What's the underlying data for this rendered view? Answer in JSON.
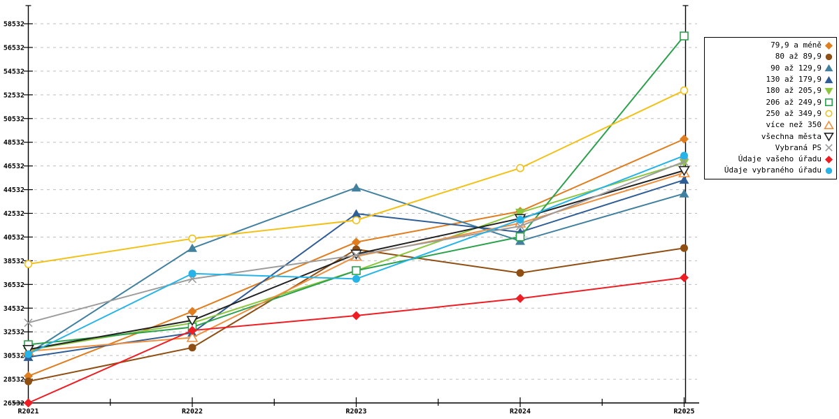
{
  "chart_data": {
    "type": "line",
    "title": "",
    "xlabel": "",
    "ylabel": "",
    "categories": [
      "R2021",
      "R2022",
      "R2023",
      "R2024",
      "R2025"
    ],
    "ylim": [
      26532,
      58532
    ],
    "y_tick_step": 2000,
    "y_ticks": [
      26532,
      28532,
      30532,
      32532,
      34532,
      36532,
      38532,
      40532,
      42532,
      44532,
      46532,
      48532,
      50532,
      52532,
      54532,
      56532,
      58532
    ],
    "grid": "horizontal-dashed",
    "grid_color": "#bdbdbd",
    "axis_color": "#000000",
    "legend_position": "right",
    "legend_border_color": "#000000",
    "legend_background": "#ffffff",
    "series": [
      {
        "name": "79,9 a méně",
        "color": "#e07d1e",
        "marker": "diamond",
        "values": [
          28800,
          34250,
          40100,
          42700,
          48800
        ]
      },
      {
        "name": "80 až 89,9",
        "color": "#8f4e12",
        "marker": "circle",
        "values": [
          28350,
          31200,
          39500,
          37500,
          39600
        ]
      },
      {
        "name": "90 až 129,9",
        "color": "#41809e",
        "marker": "triangle-up",
        "values": [
          30700,
          39600,
          44700,
          40200,
          44200
        ]
      },
      {
        "name": "130 až 179,9",
        "color": "#2f5d96",
        "marker": "triangle-up",
        "values": [
          30400,
          32450,
          42500,
          40950,
          45350
        ]
      },
      {
        "name": "180 až 205,9",
        "color": "#8cc63e",
        "marker": "triangle-down",
        "values": [
          31000,
          33280,
          37700,
          42600,
          46800
        ]
      },
      {
        "name": "206 až 249,9",
        "color": "#2ca14d",
        "marker": "square-outline",
        "values": [
          31450,
          32930,
          37700,
          40550,
          57500
        ]
      },
      {
        "name": "250 až 349,9",
        "color": "#f2c118",
        "marker": "circle-outline",
        "values": [
          38250,
          40400,
          41950,
          46350,
          52900
        ]
      },
      {
        "name": "více než 350",
        "color": "#ef8f3e",
        "marker": "triangle-up-outline",
        "values": [
          30900,
          32050,
          38900,
          41700,
          45950
        ]
      },
      {
        "name": "všechna města",
        "color": "#222222",
        "marker": "triangle-down-outline",
        "values": [
          31050,
          33500,
          39100,
          42100,
          46150
        ]
      },
      {
        "name": "Vybraná PS",
        "color": "#9c9c9c",
        "marker": "x-cross",
        "values": [
          33300,
          37000,
          39000,
          41450,
          46900
        ]
      },
      {
        "name": "Údaje vašeho úřadu",
        "color": "#ee1d23",
        "marker": "diamond",
        "values": [
          26532,
          32650,
          33900,
          35350,
          37100
        ]
      },
      {
        "name": "Údaje vybraného úřadu",
        "color": "#25b3e8",
        "marker": "circle",
        "values": [
          30650,
          37450,
          37000,
          42000,
          47400
        ]
      }
    ]
  }
}
